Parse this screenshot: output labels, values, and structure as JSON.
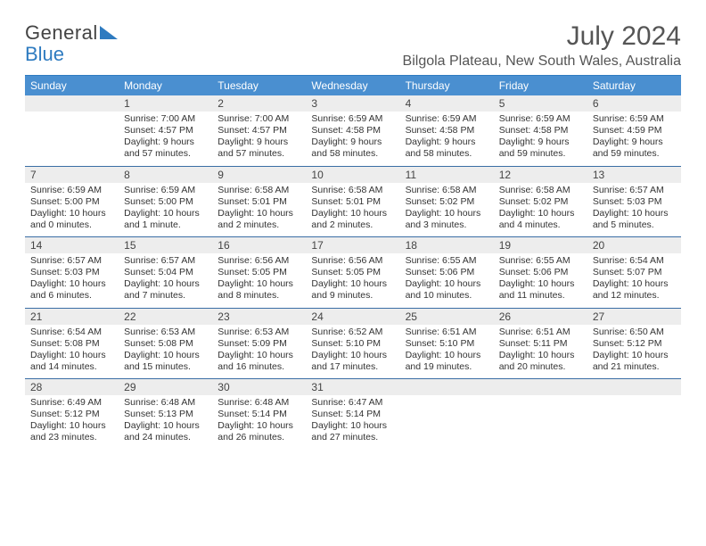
{
  "logo": {
    "text_general": "General",
    "text_blue": "Blue"
  },
  "title": "July 2024",
  "location": "Bilgola Plateau, New South Wales, Australia",
  "colors": {
    "header_bg": "#4a8fd0",
    "header_text": "#ffffff",
    "date_bg": "#ededed",
    "border": "#3a6ea5",
    "text": "#333333",
    "title_text": "#555555"
  },
  "day_names": [
    "Sunday",
    "Monday",
    "Tuesday",
    "Wednesday",
    "Thursday",
    "Friday",
    "Saturday"
  ],
  "weeks": [
    [
      {
        "date": "",
        "lines": []
      },
      {
        "date": "1",
        "lines": [
          "Sunrise: 7:00 AM",
          "Sunset: 4:57 PM",
          "Daylight: 9 hours",
          "and 57 minutes."
        ]
      },
      {
        "date": "2",
        "lines": [
          "Sunrise: 7:00 AM",
          "Sunset: 4:57 PM",
          "Daylight: 9 hours",
          "and 57 minutes."
        ]
      },
      {
        "date": "3",
        "lines": [
          "Sunrise: 6:59 AM",
          "Sunset: 4:58 PM",
          "Daylight: 9 hours",
          "and 58 minutes."
        ]
      },
      {
        "date": "4",
        "lines": [
          "Sunrise: 6:59 AM",
          "Sunset: 4:58 PM",
          "Daylight: 9 hours",
          "and 58 minutes."
        ]
      },
      {
        "date": "5",
        "lines": [
          "Sunrise: 6:59 AM",
          "Sunset: 4:58 PM",
          "Daylight: 9 hours",
          "and 59 minutes."
        ]
      },
      {
        "date": "6",
        "lines": [
          "Sunrise: 6:59 AM",
          "Sunset: 4:59 PM",
          "Daylight: 9 hours",
          "and 59 minutes."
        ]
      }
    ],
    [
      {
        "date": "7",
        "lines": [
          "Sunrise: 6:59 AM",
          "Sunset: 5:00 PM",
          "Daylight: 10 hours",
          "and 0 minutes."
        ]
      },
      {
        "date": "8",
        "lines": [
          "Sunrise: 6:59 AM",
          "Sunset: 5:00 PM",
          "Daylight: 10 hours",
          "and 1 minute."
        ]
      },
      {
        "date": "9",
        "lines": [
          "Sunrise: 6:58 AM",
          "Sunset: 5:01 PM",
          "Daylight: 10 hours",
          "and 2 minutes."
        ]
      },
      {
        "date": "10",
        "lines": [
          "Sunrise: 6:58 AM",
          "Sunset: 5:01 PM",
          "Daylight: 10 hours",
          "and 2 minutes."
        ]
      },
      {
        "date": "11",
        "lines": [
          "Sunrise: 6:58 AM",
          "Sunset: 5:02 PM",
          "Daylight: 10 hours",
          "and 3 minutes."
        ]
      },
      {
        "date": "12",
        "lines": [
          "Sunrise: 6:58 AM",
          "Sunset: 5:02 PM",
          "Daylight: 10 hours",
          "and 4 minutes."
        ]
      },
      {
        "date": "13",
        "lines": [
          "Sunrise: 6:57 AM",
          "Sunset: 5:03 PM",
          "Daylight: 10 hours",
          "and 5 minutes."
        ]
      }
    ],
    [
      {
        "date": "14",
        "lines": [
          "Sunrise: 6:57 AM",
          "Sunset: 5:03 PM",
          "Daylight: 10 hours",
          "and 6 minutes."
        ]
      },
      {
        "date": "15",
        "lines": [
          "Sunrise: 6:57 AM",
          "Sunset: 5:04 PM",
          "Daylight: 10 hours",
          "and 7 minutes."
        ]
      },
      {
        "date": "16",
        "lines": [
          "Sunrise: 6:56 AM",
          "Sunset: 5:05 PM",
          "Daylight: 10 hours",
          "and 8 minutes."
        ]
      },
      {
        "date": "17",
        "lines": [
          "Sunrise: 6:56 AM",
          "Sunset: 5:05 PM",
          "Daylight: 10 hours",
          "and 9 minutes."
        ]
      },
      {
        "date": "18",
        "lines": [
          "Sunrise: 6:55 AM",
          "Sunset: 5:06 PM",
          "Daylight: 10 hours",
          "and 10 minutes."
        ]
      },
      {
        "date": "19",
        "lines": [
          "Sunrise: 6:55 AM",
          "Sunset: 5:06 PM",
          "Daylight: 10 hours",
          "and 11 minutes."
        ]
      },
      {
        "date": "20",
        "lines": [
          "Sunrise: 6:54 AM",
          "Sunset: 5:07 PM",
          "Daylight: 10 hours",
          "and 12 minutes."
        ]
      }
    ],
    [
      {
        "date": "21",
        "lines": [
          "Sunrise: 6:54 AM",
          "Sunset: 5:08 PM",
          "Daylight: 10 hours",
          "and 14 minutes."
        ]
      },
      {
        "date": "22",
        "lines": [
          "Sunrise: 6:53 AM",
          "Sunset: 5:08 PM",
          "Daylight: 10 hours",
          "and 15 minutes."
        ]
      },
      {
        "date": "23",
        "lines": [
          "Sunrise: 6:53 AM",
          "Sunset: 5:09 PM",
          "Daylight: 10 hours",
          "and 16 minutes."
        ]
      },
      {
        "date": "24",
        "lines": [
          "Sunrise: 6:52 AM",
          "Sunset: 5:10 PM",
          "Daylight: 10 hours",
          "and 17 minutes."
        ]
      },
      {
        "date": "25",
        "lines": [
          "Sunrise: 6:51 AM",
          "Sunset: 5:10 PM",
          "Daylight: 10 hours",
          "and 19 minutes."
        ]
      },
      {
        "date": "26",
        "lines": [
          "Sunrise: 6:51 AM",
          "Sunset: 5:11 PM",
          "Daylight: 10 hours",
          "and 20 minutes."
        ]
      },
      {
        "date": "27",
        "lines": [
          "Sunrise: 6:50 AM",
          "Sunset: 5:12 PM",
          "Daylight: 10 hours",
          "and 21 minutes."
        ]
      }
    ],
    [
      {
        "date": "28",
        "lines": [
          "Sunrise: 6:49 AM",
          "Sunset: 5:12 PM",
          "Daylight: 10 hours",
          "and 23 minutes."
        ]
      },
      {
        "date": "29",
        "lines": [
          "Sunrise: 6:48 AM",
          "Sunset: 5:13 PM",
          "Daylight: 10 hours",
          "and 24 minutes."
        ]
      },
      {
        "date": "30",
        "lines": [
          "Sunrise: 6:48 AM",
          "Sunset: 5:14 PM",
          "Daylight: 10 hours",
          "and 26 minutes."
        ]
      },
      {
        "date": "31",
        "lines": [
          "Sunrise: 6:47 AM",
          "Sunset: 5:14 PM",
          "Daylight: 10 hours",
          "and 27 minutes."
        ]
      },
      {
        "date": "",
        "lines": []
      },
      {
        "date": "",
        "lines": []
      },
      {
        "date": "",
        "lines": []
      }
    ]
  ]
}
